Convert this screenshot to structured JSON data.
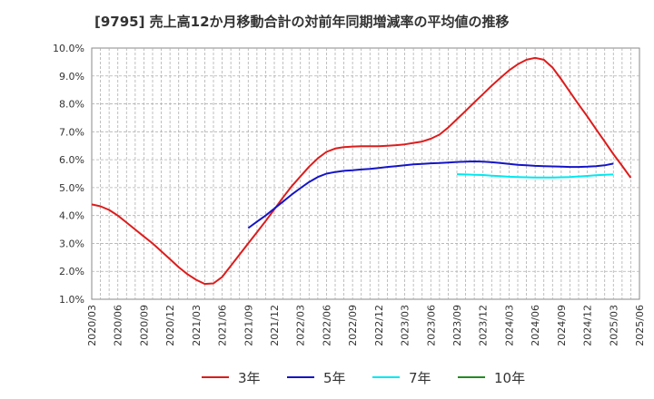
{
  "chart_data": {
    "type": "line",
    "title": "[9795]  売上高12か月移動合計の対前年同期増減率の平均値の推移",
    "xlabel": "",
    "ylabel": "",
    "ylim": [
      1.0,
      10.0
    ],
    "yticks": [
      "1.0%",
      "2.0%",
      "3.0%",
      "4.0%",
      "5.0%",
      "6.0%",
      "7.0%",
      "8.0%",
      "9.0%",
      "10.0%"
    ],
    "xticks": [
      "2020/03",
      "2020/06",
      "2020/09",
      "2020/12",
      "2021/03",
      "2021/06",
      "2021/09",
      "2021/12",
      "2022/03",
      "2022/06",
      "2022/09",
      "2022/12",
      "2023/03",
      "2023/06",
      "2023/09",
      "2023/12",
      "2024/03",
      "2024/06",
      "2024/09",
      "2024/12",
      "2025/03",
      "2025/06"
    ],
    "grid": true,
    "legend_position": "bottom",
    "series": [
      {
        "name": "3年",
        "color": "#dd1c1c",
        "start": "2020/03",
        "values": [
          4.4,
          4.33,
          4.2,
          4.0,
          3.75,
          3.5,
          3.25,
          3.0,
          2.72,
          2.44,
          2.15,
          1.9,
          1.7,
          1.55,
          1.57,
          1.8,
          2.2,
          2.6,
          3.0,
          3.4,
          3.8,
          4.22,
          4.65,
          5.05,
          5.4,
          5.75,
          6.05,
          6.28,
          6.4,
          6.45,
          6.47,
          6.48,
          6.48,
          6.48,
          6.5,
          6.52,
          6.55,
          6.6,
          6.65,
          6.75,
          6.9,
          7.15,
          7.45,
          7.75,
          8.05,
          8.35,
          8.65,
          8.93,
          9.2,
          9.42,
          9.58,
          9.65,
          9.58,
          9.3,
          8.88,
          8.43,
          7.98,
          7.55,
          7.1,
          6.65,
          6.2,
          5.78,
          5.35
        ]
      },
      {
        "name": "5年",
        "color": "#1414c8",
        "start": "2021/09",
        "values": [
          3.55,
          3.78,
          4.0,
          4.25,
          4.5,
          4.75,
          4.98,
          5.2,
          5.38,
          5.5,
          5.56,
          5.6,
          5.62,
          5.65,
          5.67,
          5.7,
          5.74,
          5.77,
          5.8,
          5.83,
          5.85,
          5.87,
          5.88,
          5.9,
          5.92,
          5.93,
          5.94,
          5.93,
          5.91,
          5.88,
          5.85,
          5.82,
          5.8,
          5.78,
          5.77,
          5.76,
          5.75,
          5.74,
          5.74,
          5.75,
          5.77,
          5.8,
          5.86
        ]
      },
      {
        "name": "7年",
        "color": "#00e8f0",
        "start": "2023/09",
        "values": [
          5.48,
          5.47,
          5.46,
          5.45,
          5.43,
          5.41,
          5.39,
          5.38,
          5.37,
          5.36,
          5.36,
          5.36,
          5.37,
          5.38,
          5.4,
          5.42,
          5.44,
          5.46,
          5.47
        ]
      },
      {
        "name": "10年",
        "color": "#228b22",
        "start": "2025/03",
        "values": []
      }
    ]
  }
}
